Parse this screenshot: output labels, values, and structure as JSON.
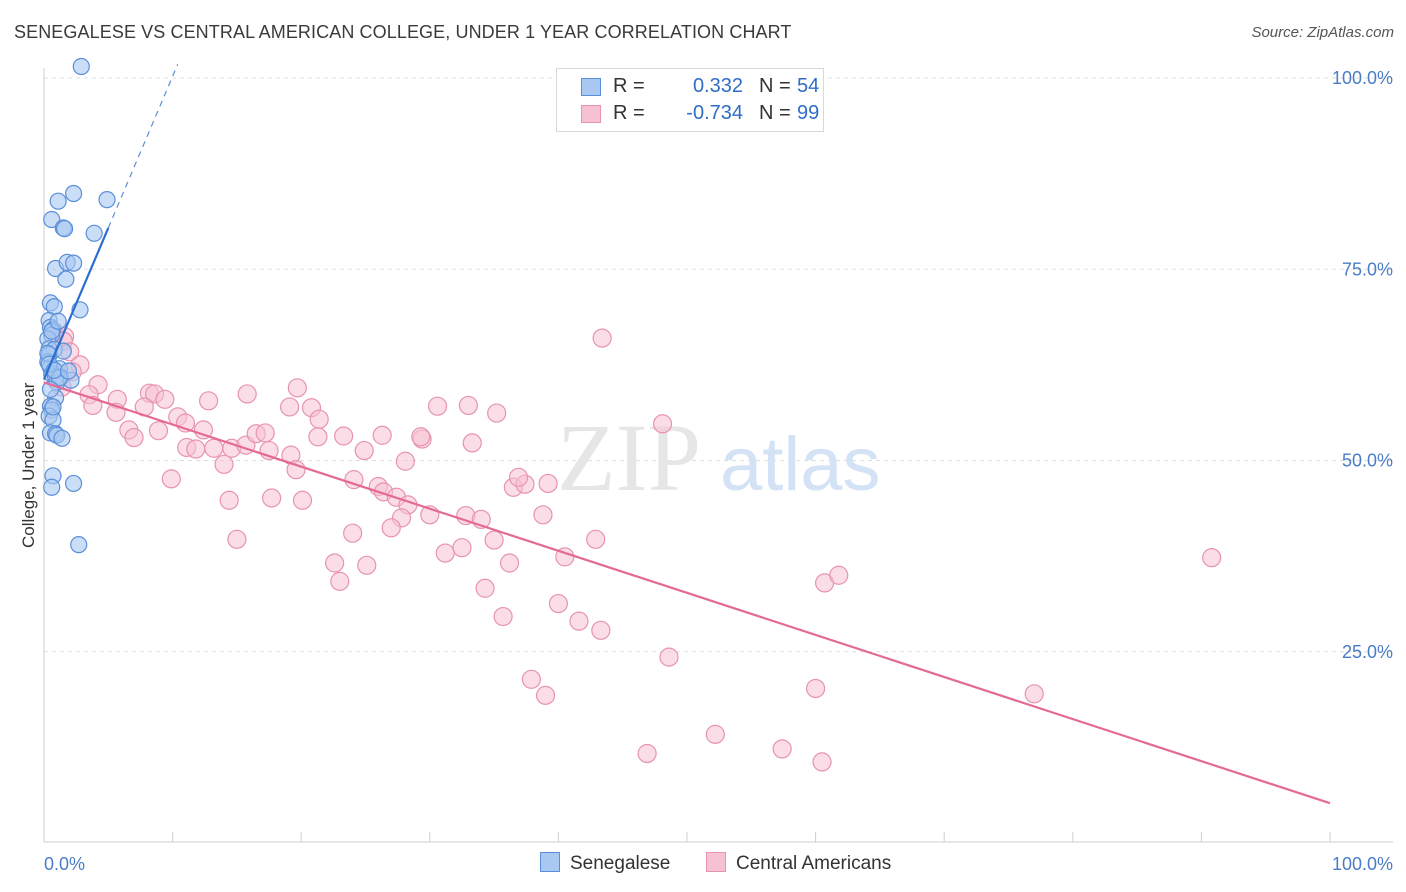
{
  "title": "SENEGALESE VS CENTRAL AMERICAN COLLEGE, UNDER 1 YEAR CORRELATION CHART",
  "source": "Source: ZipAtlas.com",
  "watermark": {
    "zip": "ZIP",
    "atlas": "atlas"
  },
  "legend": {
    "rows": [
      {
        "r_label": "R =",
        "r_value": "0.332",
        "n_label": "N =",
        "n_value": "54"
      },
      {
        "r_label": "R =",
        "r_value": "-0.734",
        "n_label": "N =",
        "n_value": "99"
      }
    ]
  },
  "bottom_legend": {
    "senegalese": "Senegalese",
    "central_americans": "Central Americans"
  },
  "colors": {
    "blue_fill": "#a9c8f2",
    "blue_stroke": "#5b8fd8",
    "blue_line": "#2a6fd0",
    "pink_fill": "#f6c1d2",
    "pink_stroke": "#e893b0",
    "pink_line": "#e46a96",
    "tick_text": "#4a7cc7",
    "grid": "#dddddd"
  },
  "chart_data": {
    "type": "scatter",
    "title": "SENEGALESE VS CENTRAL AMERICAN COLLEGE, UNDER 1 YEAR CORRELATION CHART",
    "xlabel": "",
    "ylabel": "College, Under 1 year",
    "xlim": [
      0,
      100
    ],
    "ylim": [
      0,
      100
    ],
    "x_tick_labels": [
      "0.0%",
      "100.0%"
    ],
    "y_tick_labels": [
      {
        "value": 100,
        "label": "100.0%"
      },
      {
        "value": 75,
        "label": "75.0%"
      },
      {
        "value": 50,
        "label": "50.0%"
      },
      {
        "value": 25,
        "label": "25.0%"
      }
    ],
    "series": [
      {
        "name": "Senegalese",
        "color": "#5b8fd8",
        "r": 0.332,
        "n": 54,
        "trendline": {
          "x": [
            0,
            5.0
          ],
          "y": [
            60.6,
            80.4
          ],
          "dashed_to": {
            "x": 10.4,
            "y": 101.8
          }
        },
        "points": [
          [
            2.9,
            101.5
          ],
          [
            2.3,
            84.9
          ],
          [
            1.1,
            83.9
          ],
          [
            4.9,
            84.1
          ],
          [
            0.6,
            81.5
          ],
          [
            1.5,
            80.4
          ],
          [
            1.6,
            80.3
          ],
          [
            3.9,
            79.7
          ],
          [
            0.9,
            75.1
          ],
          [
            1.8,
            75.9
          ],
          [
            2.3,
            75.8
          ],
          [
            1.7,
            73.7
          ],
          [
            0.5,
            70.6
          ],
          [
            0.8,
            70.1
          ],
          [
            2.8,
            69.7
          ],
          [
            0.4,
            68.3
          ],
          [
            0.5,
            67.4
          ],
          [
            0.7,
            67.1
          ],
          [
            0.6,
            66.4
          ],
          [
            0.3,
            65.9
          ],
          [
            0.4,
            64.6
          ],
          [
            0.8,
            64.5
          ],
          [
            0.4,
            63.8
          ],
          [
            0.3,
            62.9
          ],
          [
            0.5,
            62.2
          ],
          [
            1.2,
            62.0
          ],
          [
            0.6,
            61.3
          ],
          [
            0.9,
            61.0
          ],
          [
            1.3,
            60.9
          ],
          [
            1.0,
            60.2
          ],
          [
            2.1,
            60.5
          ],
          [
            1.2,
            60.8
          ],
          [
            0.9,
            58.2
          ],
          [
            0.5,
            57.1
          ],
          [
            0.6,
            56.6
          ],
          [
            0.4,
            55.8
          ],
          [
            0.7,
            55.3
          ],
          [
            0.5,
            53.6
          ],
          [
            0.9,
            53.5
          ],
          [
            1.0,
            53.3
          ],
          [
            1.4,
            52.9
          ],
          [
            0.7,
            48.0
          ],
          [
            2.3,
            47.0
          ],
          [
            0.6,
            46.5
          ],
          [
            2.7,
            39.0
          ],
          [
            0.3,
            64.0
          ],
          [
            0.6,
            66.9
          ],
          [
            1.1,
            68.2
          ],
          [
            0.4,
            62.6
          ],
          [
            0.8,
            61.8
          ],
          [
            1.5,
            64.3
          ],
          [
            0.5,
            59.3
          ],
          [
            1.9,
            61.7
          ],
          [
            0.7,
            57.0
          ]
        ]
      },
      {
        "name": "Central Americans",
        "color": "#e893b0",
        "r": -0.734,
        "n": 99,
        "trendline": {
          "x": [
            0,
            100
          ],
          "y": [
            60.2,
            5.2
          ]
        },
        "points": [
          [
            0.8,
            66.8
          ],
          [
            1.6,
            66.2
          ],
          [
            1.5,
            65.6
          ],
          [
            2.0,
            64.2
          ],
          [
            2.8,
            62.5
          ],
          [
            2.2,
            61.6
          ],
          [
            4.2,
            59.9
          ],
          [
            1.4,
            59.6
          ],
          [
            3.5,
            58.6
          ],
          [
            5.7,
            58.0
          ],
          [
            8.2,
            58.8
          ],
          [
            8.6,
            58.7
          ],
          [
            9.4,
            58.0
          ],
          [
            12.8,
            57.8
          ],
          [
            7.8,
            57.0
          ],
          [
            3.8,
            57.2
          ],
          [
            5.6,
            56.3
          ],
          [
            10.4,
            55.7
          ],
          [
            11.0,
            54.9
          ],
          [
            12.4,
            54.0
          ],
          [
            8.9,
            53.9
          ],
          [
            6.6,
            54.0
          ],
          [
            7.0,
            53.0
          ],
          [
            11.1,
            51.7
          ],
          [
            11.8,
            51.5
          ],
          [
            13.2,
            51.6
          ],
          [
            14.6,
            51.6
          ],
          [
            15.7,
            52.0
          ],
          [
            16.5,
            53.5
          ],
          [
            17.2,
            53.6
          ],
          [
            15.8,
            58.7
          ],
          [
            19.7,
            59.5
          ],
          [
            19.1,
            57.0
          ],
          [
            20.8,
            56.9
          ],
          [
            21.4,
            55.4
          ],
          [
            21.3,
            53.1
          ],
          [
            23.3,
            53.2
          ],
          [
            24.9,
            51.3
          ],
          [
            17.5,
            51.3
          ],
          [
            19.2,
            50.7
          ],
          [
            14.0,
            49.5
          ],
          [
            19.6,
            48.8
          ],
          [
            9.9,
            47.6
          ],
          [
            24.1,
            47.5
          ],
          [
            26.0,
            46.6
          ],
          [
            26.4,
            45.9
          ],
          [
            27.4,
            45.2
          ],
          [
            17.7,
            45.1
          ],
          [
            20.1,
            44.8
          ],
          [
            14.4,
            44.8
          ],
          [
            28.3,
            44.2
          ],
          [
            27.8,
            42.5
          ],
          [
            30.0,
            42.9
          ],
          [
            32.8,
            42.8
          ],
          [
            34.0,
            42.3
          ],
          [
            27.0,
            41.2
          ],
          [
            24.0,
            40.5
          ],
          [
            15.0,
            39.7
          ],
          [
            35.0,
            39.6
          ],
          [
            32.5,
            38.6
          ],
          [
            31.2,
            37.9
          ],
          [
            36.2,
            36.6
          ],
          [
            22.6,
            36.6
          ],
          [
            25.1,
            36.3
          ],
          [
            23.0,
            34.2
          ],
          [
            34.3,
            33.3
          ],
          [
            36.5,
            46.5
          ],
          [
            37.4,
            46.9
          ],
          [
            36.9,
            47.8
          ],
          [
            39.2,
            47.0
          ],
          [
            38.8,
            42.9
          ],
          [
            40.5,
            37.4
          ],
          [
            42.9,
            39.7
          ],
          [
            40.0,
            31.3
          ],
          [
            35.7,
            29.6
          ],
          [
            41.6,
            29.0
          ],
          [
            43.3,
            27.8
          ],
          [
            48.6,
            24.3
          ],
          [
            37.9,
            21.4
          ],
          [
            39.0,
            19.3
          ],
          [
            46.9,
            11.7
          ],
          [
            52.2,
            14.2
          ],
          [
            57.4,
            12.3
          ],
          [
            60.5,
            10.6
          ],
          [
            60.0,
            20.2
          ],
          [
            60.7,
            34.0
          ],
          [
            61.8,
            35.0
          ],
          [
            77.0,
            19.5
          ],
          [
            90.8,
            37.3
          ],
          [
            43.4,
            66.0
          ],
          [
            48.1,
            54.8
          ],
          [
            30.6,
            57.1
          ],
          [
            33.0,
            57.2
          ],
          [
            35.2,
            56.2
          ],
          [
            33.3,
            52.3
          ],
          [
            29.4,
            52.8
          ],
          [
            28.1,
            49.9
          ],
          [
            29.3,
            53.1
          ],
          [
            26.3,
            53.3
          ]
        ]
      }
    ]
  }
}
